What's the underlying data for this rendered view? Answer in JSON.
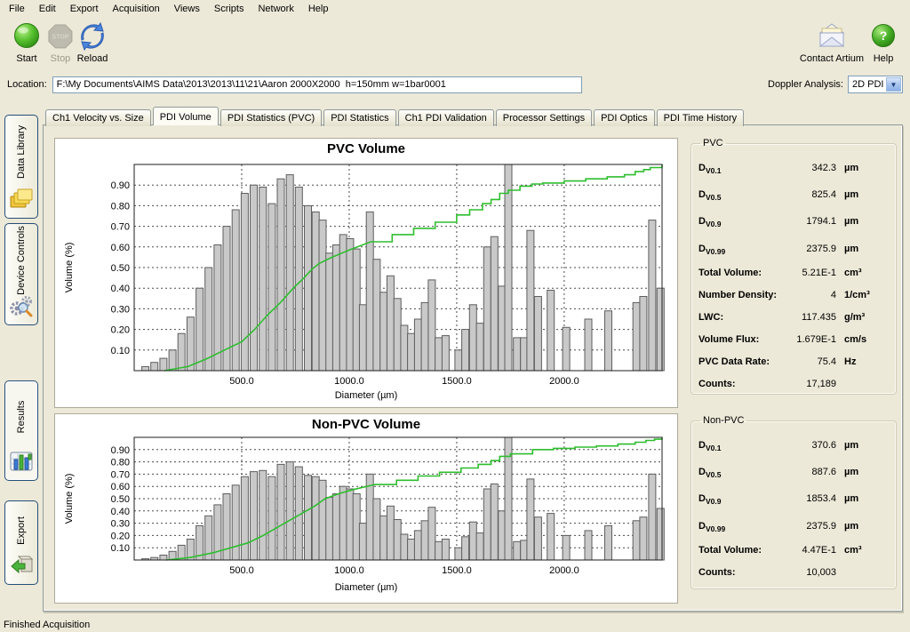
{
  "menu": {
    "items": [
      "File",
      "Edit",
      "Export",
      "Acquisition",
      "Views",
      "Scripts",
      "Network",
      "Help"
    ]
  },
  "toolbar": {
    "start_label": "Start",
    "stop_label": "Stop",
    "reload_label": "Reload",
    "contact_label": "Contact Artium",
    "help_label": "Help",
    "stop_text": "STOP"
  },
  "location": {
    "label": "Location:",
    "value": "F:\\My Documents\\AIMS Data\\2013\\2013\\11\\21\\Aaron 2000X2000  h=150mm w=1bar0001"
  },
  "doppler": {
    "label": "Doppler Analysis:",
    "value": "2D PDI"
  },
  "sidebar": {
    "items": [
      {
        "label": "Data Library",
        "icon": "folders-icon",
        "selected": false
      },
      {
        "label": "Device Controls",
        "icon": "gears-icon",
        "selected": false
      },
      {
        "label": "Results",
        "icon": "bar-chart-icon",
        "selected": true
      },
      {
        "label": "Export",
        "icon": "export-box-icon",
        "selected": false
      }
    ]
  },
  "tabs": {
    "items": [
      "Ch1 Velocity vs. Size",
      "PDI Volume",
      "PDI Statistics (PVC)",
      "PDI Statistics",
      "Ch1 PDI Validation",
      "Processor Settings",
      "PDI Optics",
      "PDI Time History"
    ],
    "active_index": 1
  },
  "stats_pvc": {
    "title": "PVC",
    "rows": [
      {
        "label": "D",
        "sub": "V0.1",
        "value": "342.3",
        "unit": "µm"
      },
      {
        "label": "D",
        "sub": "V0.5",
        "value": "825.4",
        "unit": "µm"
      },
      {
        "label": "D",
        "sub": "V0.9",
        "value": "1794.1",
        "unit": "µm"
      },
      {
        "label": "D",
        "sub": "V0.99",
        "value": "2375.9",
        "unit": "µm"
      },
      {
        "label": "Total Volume:",
        "value": "5.21E-1",
        "unit": "cm³"
      },
      {
        "label": "Number Density:",
        "value": "4",
        "unit": "1/cm³"
      },
      {
        "label": "LWC:",
        "value": "117.435",
        "unit": "g/m³"
      },
      {
        "label": "Volume Flux:",
        "value": "1.679E-1",
        "unit": "cm/s"
      },
      {
        "label": "PVC Data Rate:",
        "value": "75.4",
        "unit": "Hz"
      },
      {
        "label": "Counts:",
        "value": "17,189",
        "unit": ""
      }
    ]
  },
  "stats_nonpvc": {
    "title": "Non-PVC",
    "rows": [
      {
        "label": "D",
        "sub": "V0.1",
        "value": "370.6",
        "unit": "µm"
      },
      {
        "label": "D",
        "sub": "V0.5",
        "value": "887.6",
        "unit": "µm"
      },
      {
        "label": "D",
        "sub": "V0.9",
        "value": "1853.4",
        "unit": "µm"
      },
      {
        "label": "D",
        "sub": "V0.99",
        "value": "2375.9",
        "unit": "µm"
      },
      {
        "label": "Total Volume:",
        "value": "4.47E-1",
        "unit": "cm³"
      },
      {
        "label": "Counts:",
        "value": "10,003",
        "unit": ""
      }
    ]
  },
  "status": {
    "text": "Finished Acquisition"
  },
  "colors": {
    "accent_green_line": "#2ebe2e",
    "bar_fill": "#c9c9c9",
    "window_bg": "#ECE9D8"
  },
  "chart_data": [
    {
      "type": "bar",
      "title": "PVC Volume",
      "xlabel": "Diameter (µm)",
      "ylabel": "Volume (%)",
      "x_range": [
        0,
        2455
      ],
      "y_range": [
        0,
        1.0
      ],
      "x_ticks": [
        500,
        1000,
        1500,
        2000
      ],
      "x_tick_labels": [
        "500.0",
        "1000.0",
        "1500.0",
        "2000.0"
      ],
      "y_ticks": [
        0.1,
        0.2,
        0.3,
        0.4,
        0.5,
        0.6,
        0.7,
        0.8,
        0.9
      ],
      "y_tick_labels": [
        "0.10",
        "0.20",
        "0.30",
        "0.40",
        "0.50",
        "0.60",
        "0.70",
        "0.80",
        "0.90"
      ],
      "legend": "none",
      "grid": true,
      "step_after": 1150,
      "bars": [
        [
          52,
          0.02
        ],
        [
          94,
          0.04
        ],
        [
          136,
          0.06
        ],
        [
          178,
          0.1
        ],
        [
          220,
          0.18
        ],
        [
          262,
          0.26
        ],
        [
          304,
          0.4
        ],
        [
          346,
          0.5
        ],
        [
          388,
          0.61
        ],
        [
          430,
          0.7
        ],
        [
          472,
          0.78
        ],
        [
          514,
          0.86
        ],
        [
          556,
          0.9
        ],
        [
          598,
          0.89
        ],
        [
          640,
          0.81
        ],
        [
          682,
          0.93
        ],
        [
          724,
          0.95
        ],
        [
          766,
          0.89
        ],
        [
          808,
          0.8
        ],
        [
          844,
          0.77
        ],
        [
          876,
          0.73
        ],
        [
          908,
          0.57
        ],
        [
          940,
          0.61
        ],
        [
          972,
          0.66
        ],
        [
          1004,
          0.64
        ],
        [
          1034,
          0.59
        ],
        [
          1064,
          0.32
        ],
        [
          1096,
          0.77
        ],
        [
          1128,
          0.54
        ],
        [
          1160,
          0.38
        ],
        [
          1192,
          0.46
        ],
        [
          1224,
          0.35
        ],
        [
          1256,
          0.22
        ],
        [
          1288,
          0.18
        ],
        [
          1320,
          0.25
        ],
        [
          1352,
          0.33
        ],
        [
          1384,
          0.44
        ],
        [
          1416,
          0.16
        ],
        [
          1448,
          0.17
        ],
        [
          1508,
          0.1
        ],
        [
          1540,
          0.2
        ],
        [
          1576,
          0.32
        ],
        [
          1608,
          0.23
        ],
        [
          1642,
          0.6
        ],
        [
          1675,
          0.65
        ],
        [
          1710,
          0.41
        ],
        [
          1740,
          1.0
        ],
        [
          1780,
          0.16
        ],
        [
          1813,
          0.16
        ],
        [
          1843,
          0.68
        ],
        [
          1878,
          0.36
        ],
        [
          1937,
          0.39
        ],
        [
          2009,
          0.21
        ],
        [
          2112,
          0.25
        ],
        [
          2205,
          0.29
        ],
        [
          2336,
          0.33
        ],
        [
          2368,
          0.36
        ],
        [
          2409,
          0.73
        ],
        [
          2448,
          0.4
        ]
      ],
      "cumulative": [
        [
          140,
          0
        ],
        [
          250,
          0.02
        ],
        [
          342,
          0.06
        ],
        [
          420,
          0.1
        ],
        [
          500,
          0.14
        ],
        [
          560,
          0.2
        ],
        [
          620,
          0.27
        ],
        [
          680,
          0.33
        ],
        [
          740,
          0.4
        ],
        [
          790,
          0.45
        ],
        [
          825,
          0.49
        ],
        [
          860,
          0.52
        ],
        [
          920,
          0.55
        ],
        [
          1000,
          0.585
        ],
        [
          1100,
          0.625
        ],
        [
          1200,
          0.66
        ],
        [
          1300,
          0.69
        ],
        [
          1400,
          0.72
        ],
        [
          1500,
          0.755
        ],
        [
          1560,
          0.78
        ],
        [
          1620,
          0.81
        ],
        [
          1660,
          0.83
        ],
        [
          1700,
          0.86
        ],
        [
          1740,
          0.875
        ],
        [
          1794,
          0.895
        ],
        [
          1850,
          0.905
        ],
        [
          1900,
          0.91
        ],
        [
          2000,
          0.92
        ],
        [
          2100,
          0.93
        ],
        [
          2200,
          0.94
        ],
        [
          2280,
          0.95
        ],
        [
          2330,
          0.965
        ],
        [
          2370,
          0.975
        ],
        [
          2400,
          0.985
        ],
        [
          2455,
          1.0
        ]
      ]
    },
    {
      "type": "bar",
      "title": "Non-PVC Volume",
      "xlabel": "Diameter (µm)",
      "ylabel": "Volume (%)",
      "x_range": [
        0,
        2455
      ],
      "y_range": [
        0,
        1.0
      ],
      "x_ticks": [
        500,
        1000,
        1500,
        2000
      ],
      "x_tick_labels": [
        "500.0",
        "1000.0",
        "1500.0",
        "2000.0"
      ],
      "y_ticks": [
        0.1,
        0.2,
        0.3,
        0.4,
        0.5,
        0.6,
        0.7,
        0.8,
        0.9
      ],
      "y_tick_labels": [
        "0.10",
        "0.20",
        "0.30",
        "0.40",
        "0.50",
        "0.60",
        "0.70",
        "0.80",
        "0.90"
      ],
      "legend": "none",
      "grid": true,
      "step_after": 1150,
      "bars": [
        [
          52,
          0.01
        ],
        [
          94,
          0.02
        ],
        [
          136,
          0.04
        ],
        [
          178,
          0.07
        ],
        [
          220,
          0.12
        ],
        [
          262,
          0.17
        ],
        [
          304,
          0.28
        ],
        [
          346,
          0.36
        ],
        [
          388,
          0.45
        ],
        [
          430,
          0.54
        ],
        [
          472,
          0.61
        ],
        [
          514,
          0.68
        ],
        [
          556,
          0.72
        ],
        [
          598,
          0.73
        ],
        [
          640,
          0.68
        ],
        [
          682,
          0.78
        ],
        [
          724,
          0.8
        ],
        [
          766,
          0.76
        ],
        [
          808,
          0.69
        ],
        [
          844,
          0.68
        ],
        [
          876,
          0.65
        ],
        [
          908,
          0.51
        ],
        [
          940,
          0.54
        ],
        [
          972,
          0.6
        ],
        [
          1004,
          0.58
        ],
        [
          1034,
          0.54
        ],
        [
          1064,
          0.3
        ],
        [
          1096,
          0.7
        ],
        [
          1128,
          0.5
        ],
        [
          1160,
          0.36
        ],
        [
          1192,
          0.44
        ],
        [
          1224,
          0.33
        ],
        [
          1256,
          0.21
        ],
        [
          1288,
          0.17
        ],
        [
          1320,
          0.24
        ],
        [
          1352,
          0.32
        ],
        [
          1384,
          0.43
        ],
        [
          1416,
          0.15
        ],
        [
          1448,
          0.17
        ],
        [
          1508,
          0.1
        ],
        [
          1540,
          0.19
        ],
        [
          1576,
          0.31
        ],
        [
          1608,
          0.22
        ],
        [
          1642,
          0.58
        ],
        [
          1675,
          0.62
        ],
        [
          1710,
          0.4
        ],
        [
          1740,
          1.0
        ],
        [
          1780,
          0.15
        ],
        [
          1813,
          0.16
        ],
        [
          1843,
          0.66
        ],
        [
          1878,
          0.35
        ],
        [
          1937,
          0.38
        ],
        [
          2009,
          0.2
        ],
        [
          2112,
          0.24
        ],
        [
          2205,
          0.28
        ],
        [
          2336,
          0.32
        ],
        [
          2368,
          0.35
        ],
        [
          2409,
          0.7
        ],
        [
          2448,
          0.42
        ]
      ],
      "cumulative": [
        [
          150,
          0
        ],
        [
          260,
          0.02
        ],
        [
          370,
          0.06
        ],
        [
          450,
          0.1
        ],
        [
          530,
          0.14
        ],
        [
          600,
          0.2
        ],
        [
          660,
          0.26
        ],
        [
          720,
          0.32
        ],
        [
          780,
          0.38
        ],
        [
          840,
          0.44
        ],
        [
          888,
          0.5
        ],
        [
          950,
          0.54
        ],
        [
          1020,
          0.575
        ],
        [
          1120,
          0.615
        ],
        [
          1220,
          0.65
        ],
        [
          1320,
          0.685
        ],
        [
          1420,
          0.715
        ],
        [
          1520,
          0.75
        ],
        [
          1600,
          0.78
        ],
        [
          1660,
          0.81
        ],
        [
          1700,
          0.845
        ],
        [
          1750,
          0.865
        ],
        [
          1853,
          0.9
        ],
        [
          1950,
          0.91
        ],
        [
          2050,
          0.92
        ],
        [
          2150,
          0.93
        ],
        [
          2250,
          0.945
        ],
        [
          2330,
          0.96
        ],
        [
          2380,
          0.975
        ],
        [
          2420,
          0.985
        ],
        [
          2455,
          1.0
        ]
      ]
    }
  ]
}
